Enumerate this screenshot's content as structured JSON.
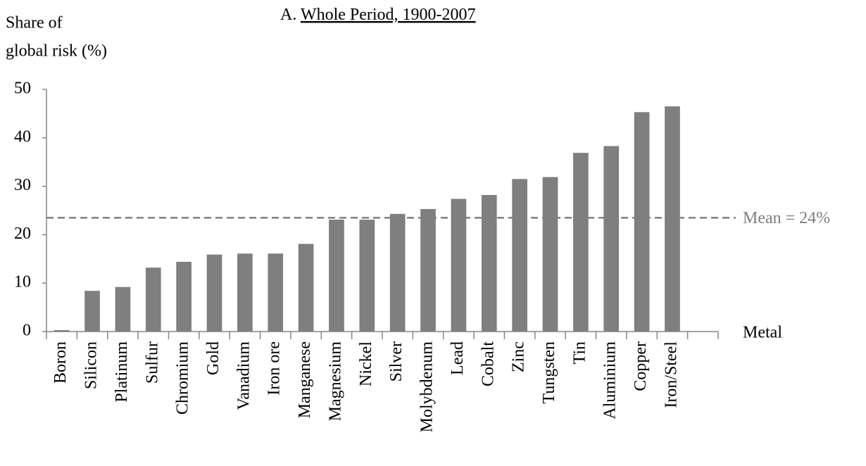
{
  "chart_data": {
    "type": "bar",
    "panel_label": "A.",
    "title": "Whole Period, 1900-2007",
    "y_label": [
      "Share of",
      "global risk (%)"
    ],
    "x_label": "Metal",
    "categories": [
      "Boron",
      "Silicon",
      "Platinum",
      "Sulfur",
      "Chromium",
      "Gold",
      "Vanadium",
      "Iron ore",
      "Manganese",
      "Magnesium",
      "Nickel",
      "Silver",
      "Molybdenum",
      "Lead",
      "Cobalt",
      "Zinc",
      "Tungsten",
      "Tin",
      "Aluminium",
      "Copper",
      "Iron/Steel",
      null
    ],
    "values": [
      0.3,
      8.4,
      9.2,
      13.2,
      14.4,
      15.9,
      16.1,
      16.1,
      18.1,
      23.1,
      23.1,
      24.3,
      25.3,
      27.4,
      28.2,
      31.5,
      31.9,
      36.9,
      38.3,
      45.3,
      46.5,
      null
    ],
    "color": "#7f7f7f",
    "ylim": [
      0,
      50
    ],
    "yticks": [
      0,
      10,
      20,
      30,
      40,
      50
    ],
    "mean_line": {
      "value": 23.5,
      "label": "Mean = 24%"
    },
    "grid": false
  }
}
